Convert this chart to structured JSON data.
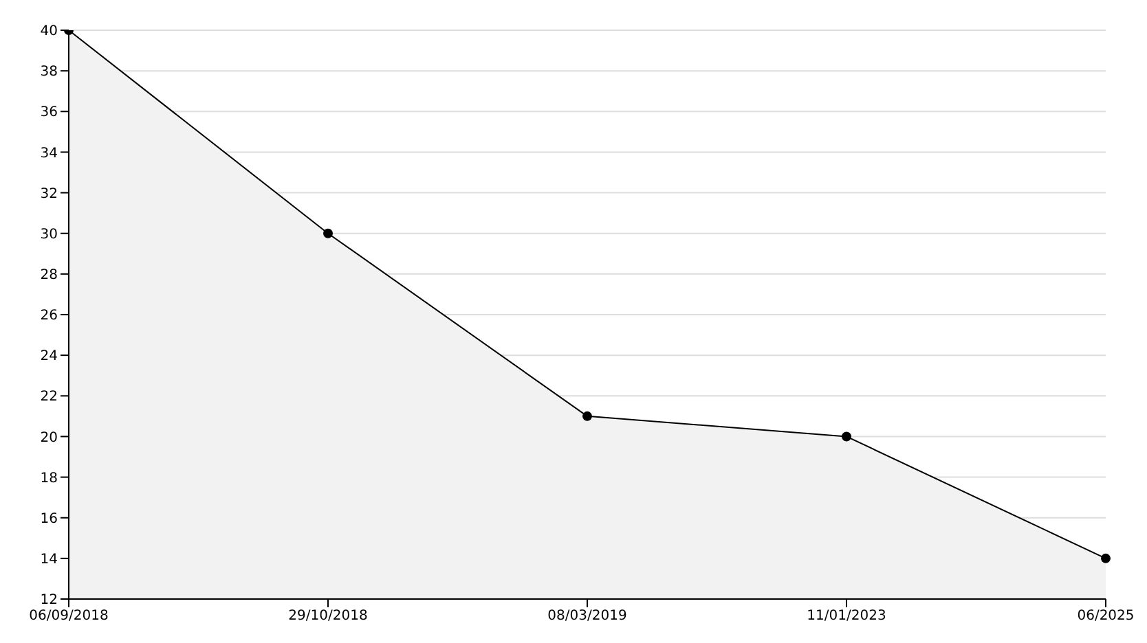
{
  "chart_data": {
    "type": "area",
    "categories": [
      "06/09/2018",
      "29/10/2018",
      "08/03/2019",
      "11/01/2023",
      "06/2025"
    ],
    "series": [
      {
        "color": "#000000",
        "values": [
          40,
          30,
          21,
          20,
          14
        ]
      }
    ],
    "ylim": [
      12,
      40
    ],
    "yticks": [
      12,
      14,
      16,
      18,
      20,
      22,
      24,
      26,
      28,
      30,
      32,
      34,
      36,
      38,
      40
    ],
    "grid": "y",
    "marker": "circle",
    "legend": false
  }
}
